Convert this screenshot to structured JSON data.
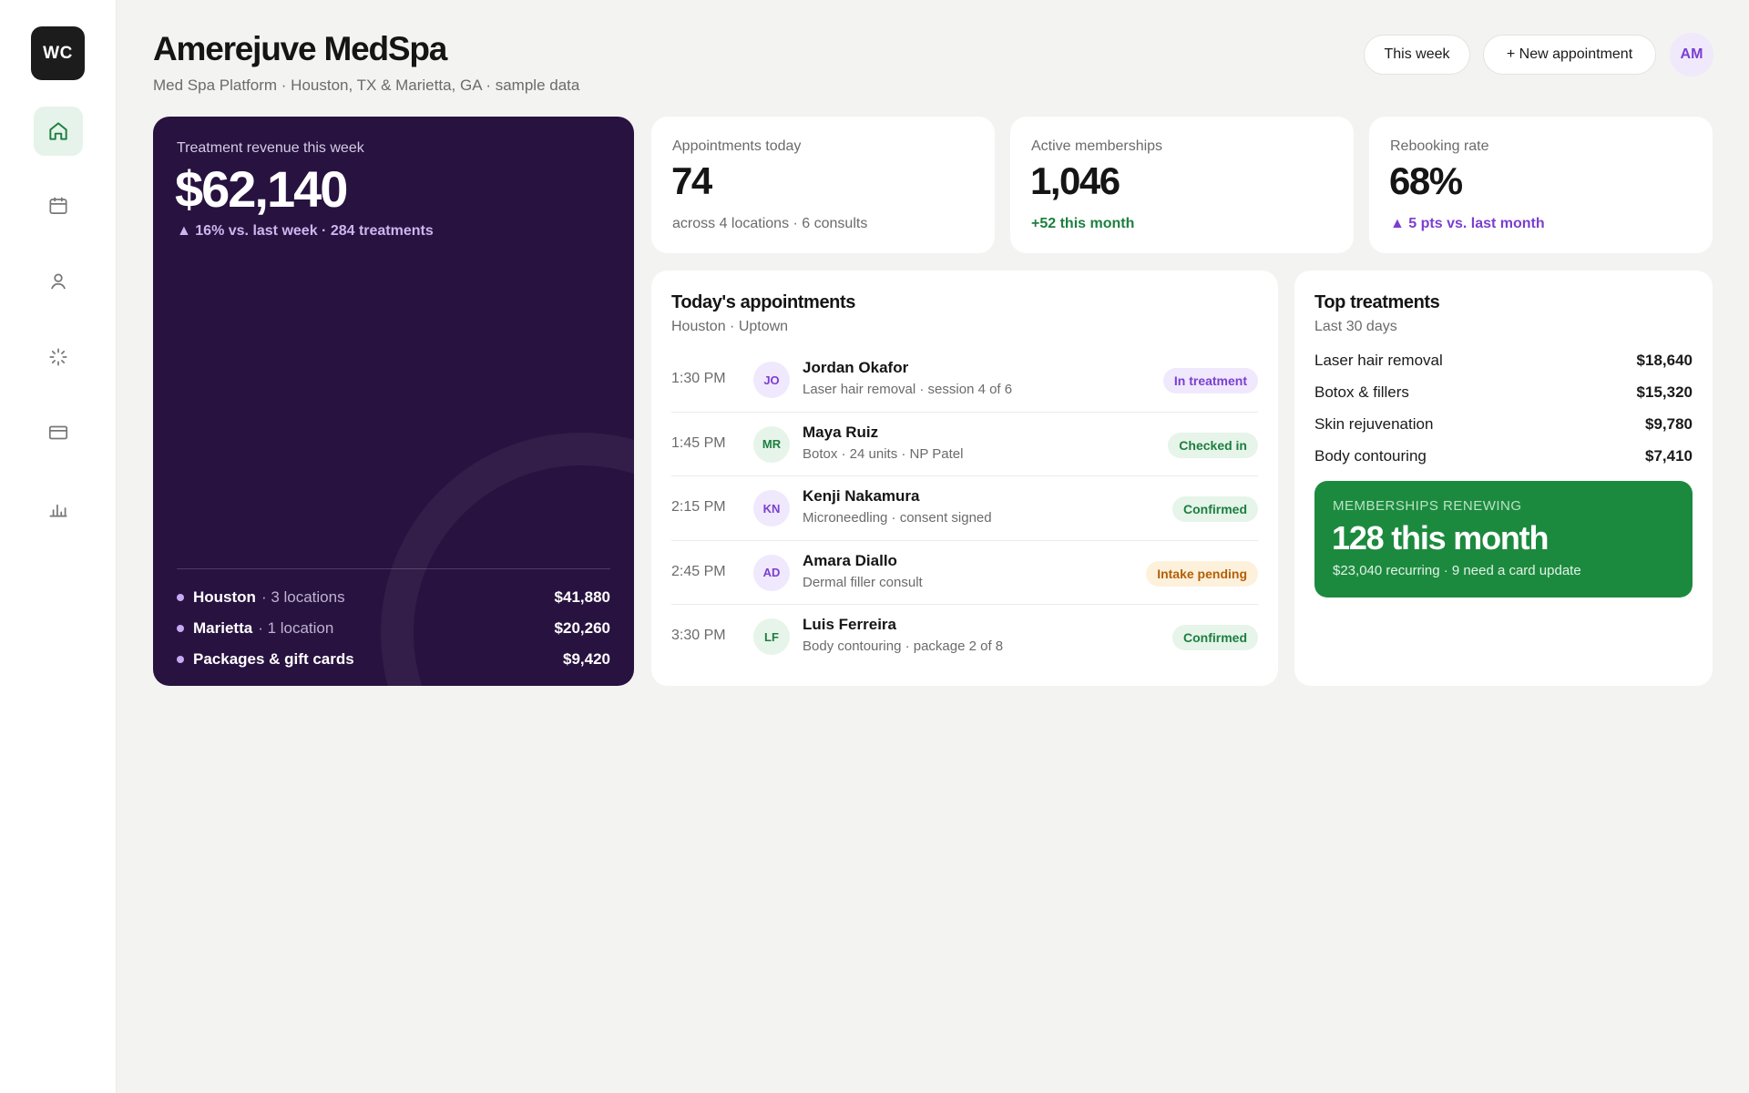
{
  "sidebar": {
    "logo": "WC",
    "items": [
      {
        "icon": "home-icon",
        "active": true
      },
      {
        "icon": "calendar-icon",
        "active": false
      },
      {
        "icon": "user-icon",
        "active": false
      },
      {
        "icon": "sparkle-icon",
        "active": false
      },
      {
        "icon": "credit-card-icon",
        "active": false
      },
      {
        "icon": "bar-chart-icon",
        "active": false
      }
    ]
  },
  "header": {
    "title": "Amerejuve MedSpa",
    "subtitle": "Med Spa Platform · Houston, TX & Marietta, GA · sample data",
    "week_button": "This week",
    "new_button": "+ New appointment",
    "avatar": "AM"
  },
  "revenue": {
    "label": "Treatment revenue this week",
    "value": "$62,140",
    "delta": "▲ 16% vs. last week · 284 treatments",
    "rows": [
      {
        "name": "Houston",
        "sub": "· 3 locations",
        "amount": "$41,880"
      },
      {
        "name": "Marietta",
        "sub": "· 1 location",
        "amount": "$20,260"
      },
      {
        "name": "Packages & gift cards",
        "sub": "",
        "amount": "$9,420"
      }
    ]
  },
  "stats": [
    {
      "label": "Appointments today",
      "value": "74",
      "note": "across 4 locations · 6 consults"
    },
    {
      "label": "Active memberships",
      "value": "1,046",
      "note": "+52 this month"
    },
    {
      "label": "Rebooking rate",
      "value": "68%",
      "note": "▲ 5 pts vs. last month"
    }
  ],
  "appointments": {
    "title": "Today's appointments",
    "subtitle": "Houston · Uptown",
    "rows": [
      {
        "time": "1:30 PM",
        "initials": "JO",
        "name": "Jordan Okafor",
        "detail": "Laser hair removal · session 4 of 6",
        "status": "In treatment"
      },
      {
        "time": "1:45 PM",
        "initials": "MR",
        "name": "Maya Ruiz",
        "detail": "Botox · 24 units · NP Patel",
        "status": "Checked in"
      },
      {
        "time": "2:15 PM",
        "initials": "KN",
        "name": "Kenji Nakamura",
        "detail": "Microneedling · consent signed",
        "status": "Confirmed"
      },
      {
        "time": "2:45 PM",
        "initials": "AD",
        "name": "Amara Diallo",
        "detail": "Dermal filler consult",
        "status": "Intake pending"
      },
      {
        "time": "3:30 PM",
        "initials": "LF",
        "name": "Luis Ferreira",
        "detail": "Body contouring · package 2 of 8",
        "status": "Confirmed"
      }
    ]
  },
  "top_treatments": {
    "title": "Top treatments",
    "subtitle": "Last 30 days",
    "rows": [
      {
        "name": "Laser hair removal",
        "amount": "$18,640"
      },
      {
        "name": "Botox & fillers",
        "amount": "$15,320"
      },
      {
        "name": "Skin rejuvenation",
        "amount": "$9,780"
      },
      {
        "name": "Body contouring",
        "amount": "$7,410"
      }
    ]
  },
  "renewals": {
    "label": "MEMBERSHIPS RENEWING",
    "value": "128 this month",
    "note": "$23,040 recurring · 9 need a card update"
  },
  "colors": {
    "revenue_card": "#28123f",
    "accent_purple": "#7a3fd1",
    "accent_green": "#1c8a3e",
    "badge_in_treatment": "#f0e8fc",
    "badge_checked_in": "#e6f4ea",
    "badge_intake_pending": "#fdf1dc"
  }
}
